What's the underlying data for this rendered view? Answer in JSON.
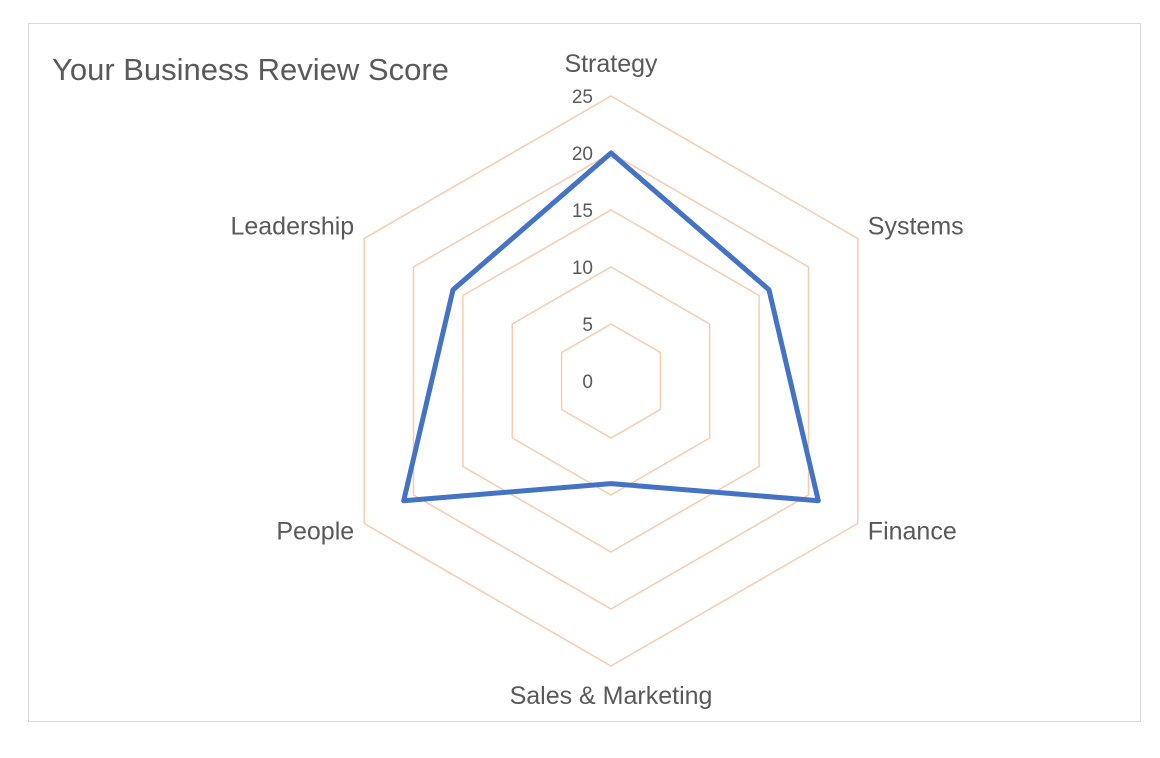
{
  "chart_data": {
    "type": "radar",
    "title": "Your Business Review Score",
    "categories": [
      "Strategy",
      "Systems",
      "Finance",
      "Sales & Marketing",
      "People",
      "Leadership"
    ],
    "series": [
      {
        "values": [
          20,
          16,
          21,
          9,
          21,
          16
        ]
      }
    ],
    "rlim": [
      0,
      25
    ],
    "ticks": [
      0,
      5,
      10,
      15,
      20,
      25
    ],
    "tick_labels": [
      "0",
      "5",
      "10",
      "15",
      "20",
      "25"
    ],
    "grid": true,
    "legend": "none",
    "colors": {
      "series": "#4472c4",
      "grid": "#f8cbad",
      "text": "#595959",
      "frame": "#d9d9d9"
    }
  }
}
